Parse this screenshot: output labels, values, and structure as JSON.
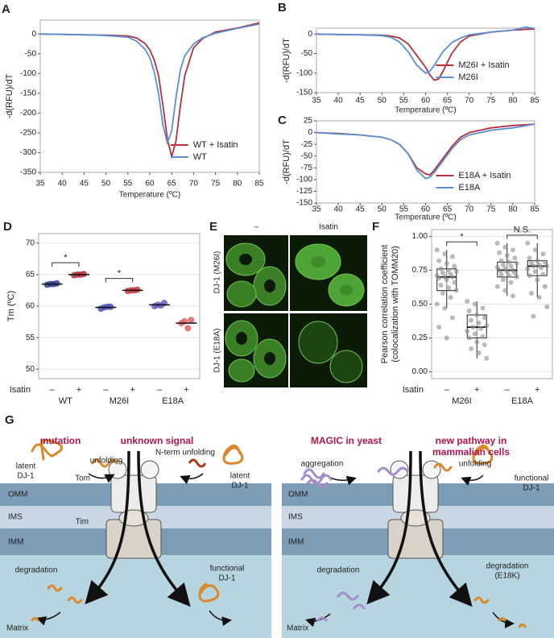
{
  "chart_data": [
    {
      "type": "line",
      "panel": "A",
      "ylabel": "-d(RFU)/dT",
      "xlabel": "Temperature (ºC)",
      "x": [
        35,
        40,
        45,
        50,
        55,
        57,
        59,
        60,
        61,
        62,
        63,
        64,
        65,
        66,
        67,
        68,
        70,
        72,
        75,
        80,
        85
      ],
      "series": [
        {
          "name": "WT + Isatin",
          "color": "#b5323a",
          "values": [
            0,
            -1,
            -2,
            -3,
            -5,
            -10,
            -25,
            -40,
            -65,
            -105,
            -180,
            -265,
            -310,
            -270,
            -180,
            -105,
            -35,
            -12,
            5,
            15,
            28
          ]
        },
        {
          "name": "WT",
          "color": "#5b8fd6",
          "values": [
            0,
            -1,
            -2,
            -4,
            -8,
            -18,
            -40,
            -60,
            -95,
            -150,
            -230,
            -275,
            -245,
            -160,
            -90,
            -55,
            -25,
            -10,
            2,
            14,
            25
          ]
        }
      ],
      "xlim": [
        35,
        85
      ],
      "xticks": [
        35,
        40,
        45,
        50,
        55,
        60,
        65,
        70,
        75,
        80,
        85
      ],
      "ylim": [
        -350,
        35
      ],
      "yticks": [
        0,
        -50,
        -100,
        -150,
        -200,
        -250,
        -300,
        -350
      ],
      "legend": "lower right"
    },
    {
      "type": "line",
      "panel": "B",
      "ylabel": "-d(RFU)/dT",
      "xlabel": "Temperature (ºC)",
      "x": [
        35,
        40,
        45,
        50,
        52,
        54,
        56,
        58,
        60,
        61,
        62,
        63,
        64,
        66,
        68,
        70,
        75,
        80,
        83,
        85
      ],
      "series": [
        {
          "name": "M26I + Isatin",
          "color": "#b5323a",
          "values": [
            0,
            -1,
            -2,
            -3,
            -5,
            -10,
            -25,
            -55,
            -85,
            -105,
            -118,
            -115,
            -95,
            -50,
            -20,
            -5,
            5,
            10,
            12,
            13
          ]
        },
        {
          "name": "M26I",
          "color": "#5b8fd6",
          "values": [
            0,
            -1,
            -2,
            -4,
            -8,
            -20,
            -45,
            -80,
            -100,
            -95,
            -80,
            -62,
            -45,
            -22,
            -10,
            -2,
            5,
            10,
            18,
            14
          ]
        }
      ],
      "xlim": [
        35,
        85
      ],
      "xticks": [
        35,
        40,
        45,
        50,
        55,
        60,
        65,
        70,
        75,
        80,
        85
      ],
      "ylim": [
        -150,
        15
      ],
      "yticks": [
        0,
        -50,
        -100,
        -150
      ],
      "legend": "lower right"
    },
    {
      "type": "line",
      "panel": "C",
      "ylabel": "-d(RFU)/dT",
      "xlabel": "Temperature (ºC)",
      "x": [
        35,
        40,
        45,
        50,
        52,
        54,
        56,
        58,
        60,
        61,
        62,
        64,
        66,
        68,
        70,
        75,
        80,
        85
      ],
      "series": [
        {
          "name": "E18A + Isatin",
          "color": "#b5323a",
          "values": [
            0,
            -2,
            -5,
            -10,
            -15,
            -25,
            -45,
            -75,
            -88,
            -90,
            -80,
            -55,
            -30,
            -10,
            0,
            10,
            15,
            18
          ]
        },
        {
          "name": "E18A",
          "color": "#5b8fd6",
          "values": [
            0,
            -3,
            -5,
            -10,
            -15,
            -25,
            -45,
            -80,
            -98,
            -95,
            -85,
            -60,
            -35,
            -15,
            -5,
            5,
            10,
            18
          ]
        }
      ],
      "xlim": [
        35,
        85
      ],
      "xticks": [
        35,
        40,
        45,
        50,
        55,
        60,
        65,
        70,
        75,
        80,
        85
      ],
      "ylim": [
        -150,
        25
      ],
      "yticks": [
        25,
        0,
        -25,
        -50,
        -75,
        -100,
        -125,
        -150
      ],
      "legend": "lower right"
    },
    {
      "type": "strip",
      "panel": "D",
      "ylabel": "Tm (ºC)",
      "row_label": "Isatin",
      "categories": [
        "–",
        "+",
        "–",
        "+",
        "–",
        "+"
      ],
      "groups": [
        "WT",
        "M26I",
        "E18A"
      ],
      "points": [
        [
          63.4,
          63.5,
          63.5,
          63.6
        ],
        [
          64.9,
          65.0,
          65.0,
          65.1
        ],
        [
          59.6,
          59.8,
          59.9,
          59.9
        ],
        [
          62.4,
          62.5,
          62.5,
          62.6
        ],
        [
          60.0,
          60.2,
          60.1,
          60.5
        ],
        [
          57.3,
          57.6,
          56.5,
          57.8
        ]
      ],
      "means": [
        63.5,
        65.0,
        59.8,
        62.5,
        60.2,
        57.3
      ],
      "colors": [
        "#2b3f8f",
        "#b5323a",
        "#4b55b0",
        "#c23b3b",
        "#6a5bb8",
        "#e06060"
      ],
      "ylim": [
        48.5,
        71.5
      ],
      "yticks": [
        50,
        55,
        60,
        65,
        70
      ],
      "grid": true,
      "significance": [
        {
          "label": "*",
          "categories": [
            0,
            1
          ]
        },
        {
          "label": "*",
          "categories": [
            2,
            3
          ]
        }
      ]
    },
    {
      "type": "box",
      "panel": "F",
      "ylabel": [
        "Pearson correlation coefficient",
        "(colocalization with TOMM20)"
      ],
      "row_label": "Isatin",
      "categories": [
        "–",
        "+",
        "–",
        "+"
      ],
      "groups": [
        "M26I",
        "E18A"
      ],
      "boxes": [
        {
          "whisker_low": 0.47,
          "q1": 0.6,
          "median": 0.7,
          "q3": 0.76,
          "whisker_high": 0.9
        },
        {
          "whisker_low": 0.1,
          "q1": 0.25,
          "median": 0.33,
          "q3": 0.42,
          "whisker_high": 0.52
        },
        {
          "whisker_low": 0.56,
          "q1": 0.7,
          "median": 0.75,
          "q3": 0.81,
          "whisker_high": 0.95
        },
        {
          "whisker_low": 0.55,
          "q1": 0.71,
          "median": 0.78,
          "q3": 0.82,
          "whisker_high": 0.95
        }
      ],
      "points": [
        [
          0.9,
          0.87,
          0.85,
          0.82,
          0.8,
          0.78,
          0.76,
          0.75,
          0.74,
          0.73,
          0.72,
          0.71,
          0.7,
          0.7,
          0.69,
          0.68,
          0.66,
          0.64,
          0.62,
          0.6,
          0.58,
          0.55,
          0.5,
          0.47,
          0.4,
          0.33,
          0.25
        ],
        [
          0.52,
          0.5,
          0.47,
          0.45,
          0.42,
          0.4,
          0.38,
          0.36,
          0.34,
          0.33,
          0.32,
          0.3,
          0.28,
          0.26,
          0.25,
          0.22,
          0.2,
          0.17,
          0.14,
          0.1
        ],
        [
          0.95,
          0.92,
          0.9,
          0.88,
          0.86,
          0.84,
          0.82,
          0.81,
          0.8,
          0.79,
          0.78,
          0.77,
          0.76,
          0.75,
          0.75,
          0.74,
          0.73,
          0.72,
          0.71,
          0.7,
          0.68,
          0.66,
          0.63,
          0.6,
          0.56
        ],
        [
          0.95,
          0.9,
          0.87,
          0.84,
          0.82,
          0.81,
          0.8,
          0.79,
          0.78,
          0.78,
          0.77,
          0.76,
          0.74,
          0.72,
          0.71,
          0.68,
          0.63,
          0.58,
          0.55,
          0.48,
          0.41
        ]
      ],
      "point_color": "#8c8c8c",
      "ylim": [
        -0.05,
        1.05
      ],
      "yticks": [
        {
          "value": 0,
          "label": "0.00"
        },
        {
          "value": 0.25,
          "label": "0.25"
        },
        {
          "value": 0.5,
          "label": "0.50"
        },
        {
          "value": 0.75,
          "label": "0.75"
        },
        {
          "value": 1,
          "label": "1.00"
        }
      ],
      "grid": true,
      "significance": [
        {
          "label": "*",
          "categories": [
            0,
            1
          ]
        },
        {
          "label": "N.S.",
          "categories": [
            2,
            3
          ]
        }
      ]
    }
  ],
  "image_panel": {
    "panel": "E",
    "columns": [
      "–",
      "Isatin"
    ],
    "rows": [
      "DJ-1 (M26I)",
      "DJ-1 (E18A)"
    ]
  },
  "diagram": {
    "panel": "G",
    "headings": {
      "mutation": "mutation",
      "signal": "unknown signal",
      "magic": "MAGIC in yeast",
      "pathway": [
        "new pathway in",
        "mammalian cells"
      ]
    },
    "left": {
      "unfolding": "unfolding",
      "n_term": "N-term unfolding",
      "latent_a": [
        "latent",
        "DJ-1"
      ],
      "latent_b": [
        "latent",
        "DJ-1"
      ],
      "tom": "Tom",
      "omm": "OMM",
      "ims": "IMS",
      "tim": "Tim",
      "imm": "IMM",
      "degradation": "degradation",
      "functional": [
        "functional",
        "DJ-1"
      ],
      "matrix": "Matrix"
    },
    "right": {
      "aggregation": "aggregation",
      "unfolding": "unfolding",
      "functional": [
        "functional",
        "DJ-1"
      ],
      "omm": "OMM",
      "ims": "IMS",
      "imm": "IMM",
      "degradation": "degradation",
      "degradation_e18k": [
        "degradation",
        "(E18K)"
      ],
      "matrix": "Matrix"
    }
  }
}
